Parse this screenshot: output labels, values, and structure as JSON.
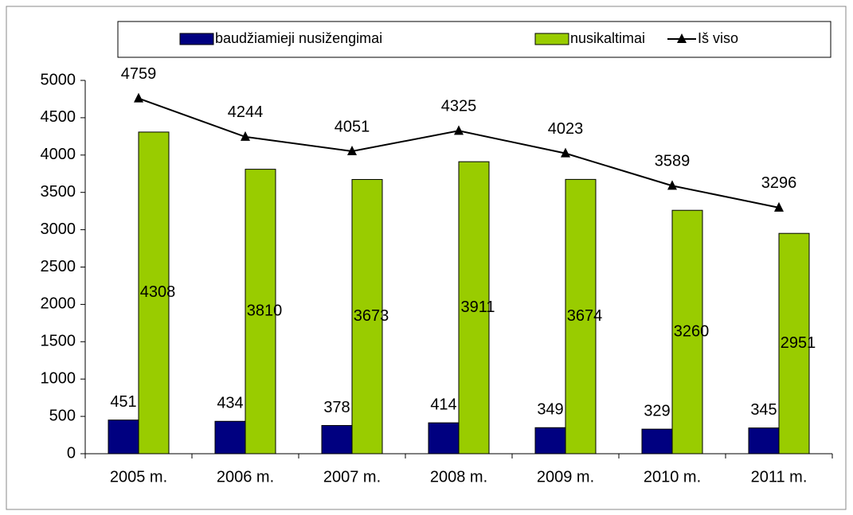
{
  "chart_data": {
    "type": "bar",
    "categories": [
      "2005 m.",
      "2006 m.",
      "2007 m.",
      "2008 m.",
      "2009 m.",
      "2010 m.",
      "2011 m."
    ],
    "series": [
      {
        "name": "baudžiamieji nusižengimai",
        "color": "#000080",
        "values": [
          451,
          434,
          378,
          414,
          349,
          329,
          345
        ]
      },
      {
        "name": "nusikaltimai",
        "color": "#99cc00",
        "values": [
          4308,
          3810,
          3673,
          3911,
          3674,
          3260,
          2951
        ]
      },
      {
        "name": "Iš viso",
        "color": "#000000",
        "type": "line",
        "values": [
          4759,
          4244,
          4051,
          4325,
          4023,
          3589,
          3296
        ]
      }
    ],
    "ylim": [
      0,
      5000
    ],
    "yticks": [
      0,
      500,
      1000,
      1500,
      2000,
      2500,
      3000,
      3500,
      4000,
      4500,
      5000
    ],
    "grid": false,
    "legend": "top"
  }
}
